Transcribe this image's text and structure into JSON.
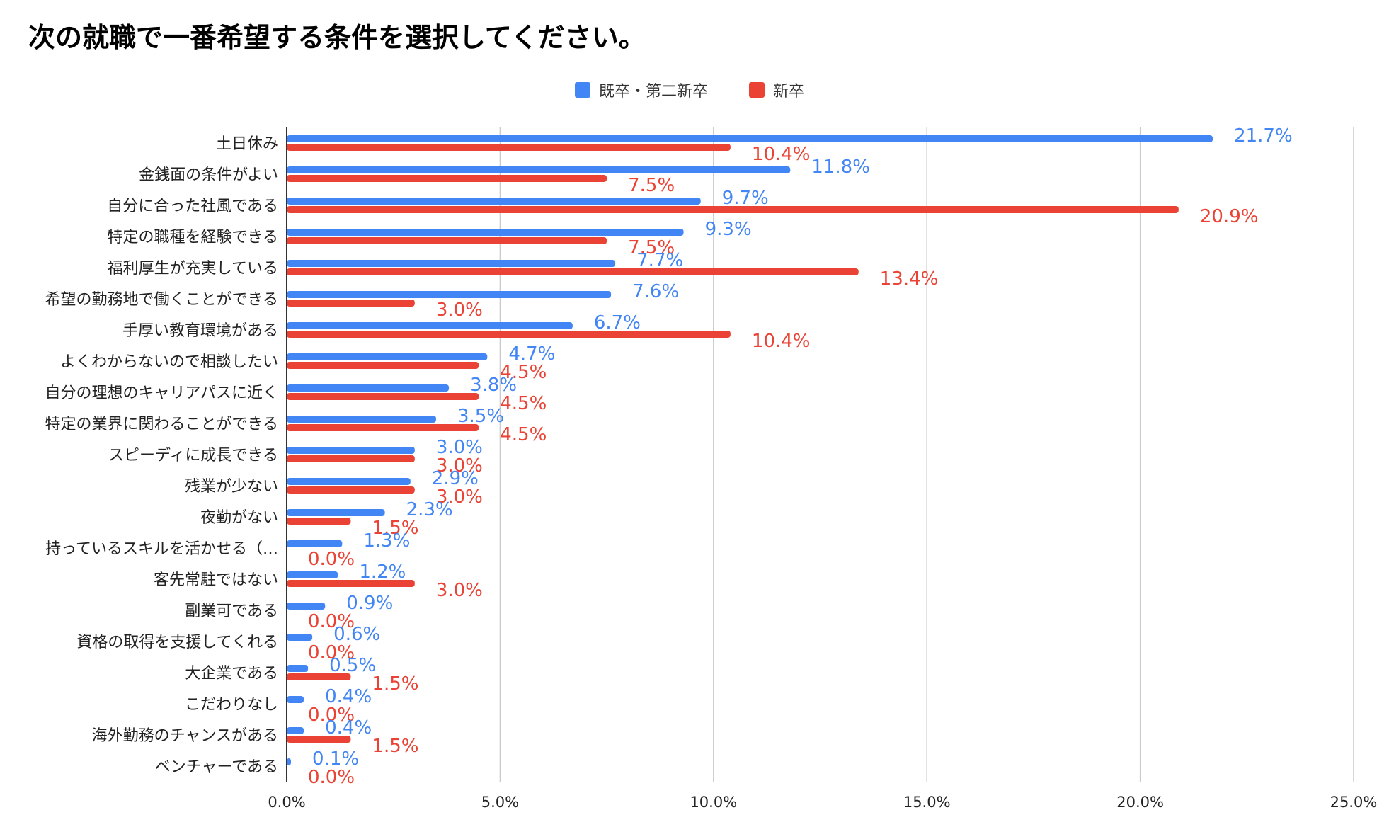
{
  "chart_data": {
    "type": "bar",
    "orientation": "horizontal",
    "title": "次の就職で一番希望する条件を選択してください。",
    "categories": [
      "土日休み",
      "金銭面の条件がよい",
      "自分に合った社風である",
      "特定の職種を経験できる",
      "福利厚生が充実している",
      "希望の勤務地で働くことができる",
      "手厚い教育環境がある",
      "よくわからないので相談したい",
      "自分の理想のキャリアパスに近く",
      "特定の業界に関わることができる",
      "スピーディに成長できる",
      "残業が少ない",
      "夜勤がない",
      "持っているスキルを活かせる（…",
      "客先常駐ではない",
      "副業可である",
      "資格の取得を支援してくれる",
      "大企業である",
      "こだわりなし",
      "海外勤務のチャンスがある",
      "ベンチャーである"
    ],
    "series": [
      {
        "name": "既卒・第二新卒",
        "color": "#4285f4",
        "values": [
          21.7,
          11.8,
          9.7,
          9.3,
          7.7,
          7.6,
          6.7,
          4.7,
          3.8,
          3.5,
          3.0,
          2.9,
          2.3,
          1.3,
          1.2,
          0.9,
          0.6,
          0.5,
          0.4,
          0.4,
          0.1
        ],
        "labels": [
          "21.7%",
          "11.8%",
          "9.7%",
          "9.3%",
          "7.7%",
          "7.6%",
          "6.7%",
          "4.7%",
          "3.8%",
          "3.5%",
          "3.0%",
          "2.9%",
          "2.3%",
          "1.3%",
          "1.2%",
          "0.9%",
          "0.6%",
          "0.5%",
          "0.4%",
          "0.4%",
          "0.1%"
        ]
      },
      {
        "name": "新卒",
        "color": "#ea4335",
        "values": [
          10.4,
          7.5,
          20.9,
          7.5,
          13.4,
          3.0,
          10.4,
          4.5,
          4.5,
          4.5,
          3.0,
          3.0,
          1.5,
          0.0,
          3.0,
          0.0,
          0.0,
          1.5,
          0.0,
          1.5,
          0.0
        ],
        "labels": [
          "10.4%",
          "7.5%",
          "20.9%",
          "7.5%",
          "13.4%",
          "3.0%",
          "10.4%",
          "4.5%",
          "4.5%",
          "4.5%",
          "3.0%",
          "3.0%",
          "1.5%",
          "0.0%",
          "3.0%",
          "0.0%",
          "0.0%",
          "1.5%",
          "0.0%",
          "1.5%",
          "0.0%"
        ]
      }
    ],
    "xlim": [
      0,
      25
    ],
    "xticks": [
      0,
      5,
      10,
      15,
      20,
      25
    ],
    "xtick_labels": [
      "0.0%",
      "5.0%",
      "10.0%",
      "15.0%",
      "20.0%",
      "25.0%"
    ],
    "grid": true,
    "legend_position": "top-center"
  }
}
